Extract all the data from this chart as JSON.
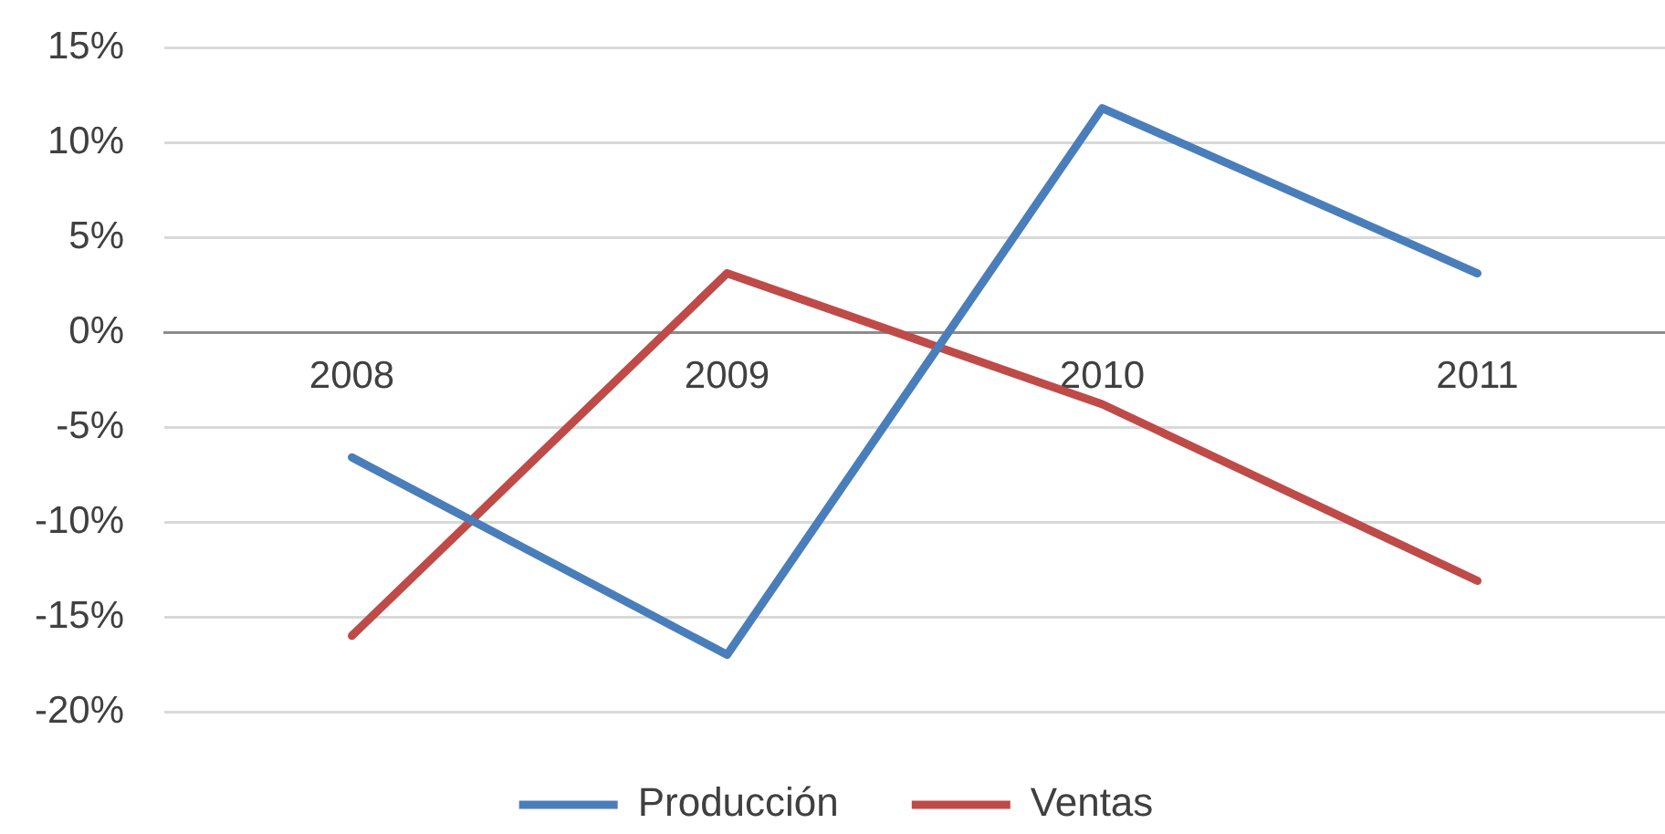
{
  "chart_data": {
    "type": "line",
    "categories": [
      "2008",
      "2009",
      "2010",
      "2011"
    ],
    "series": [
      {
        "name": "Producción",
        "color": "#4a7ebb",
        "values": [
          -6.6,
          -17,
          11.8,
          3.1
        ]
      },
      {
        "name": "Ventas",
        "color": "#be4b48",
        "values": [
          -16,
          3.1,
          -3.8,
          -13.1
        ]
      }
    ],
    "ylim": [
      -20,
      15
    ],
    "yticks": [
      {
        "value": -20,
        "label": "-20%"
      },
      {
        "value": -15,
        "label": "-15%"
      },
      {
        "value": -10,
        "label": "-10%"
      },
      {
        "value": -5,
        "label": "-5%"
      },
      {
        "value": 0,
        "label": "0%"
      },
      {
        "value": 5,
        "label": "5%"
      },
      {
        "value": 10,
        "label": "10%"
      },
      {
        "value": 15,
        "label": "15%"
      }
    ],
    "grid": "y",
    "legend": "bottom",
    "marker": "none",
    "line_style": "solid"
  }
}
